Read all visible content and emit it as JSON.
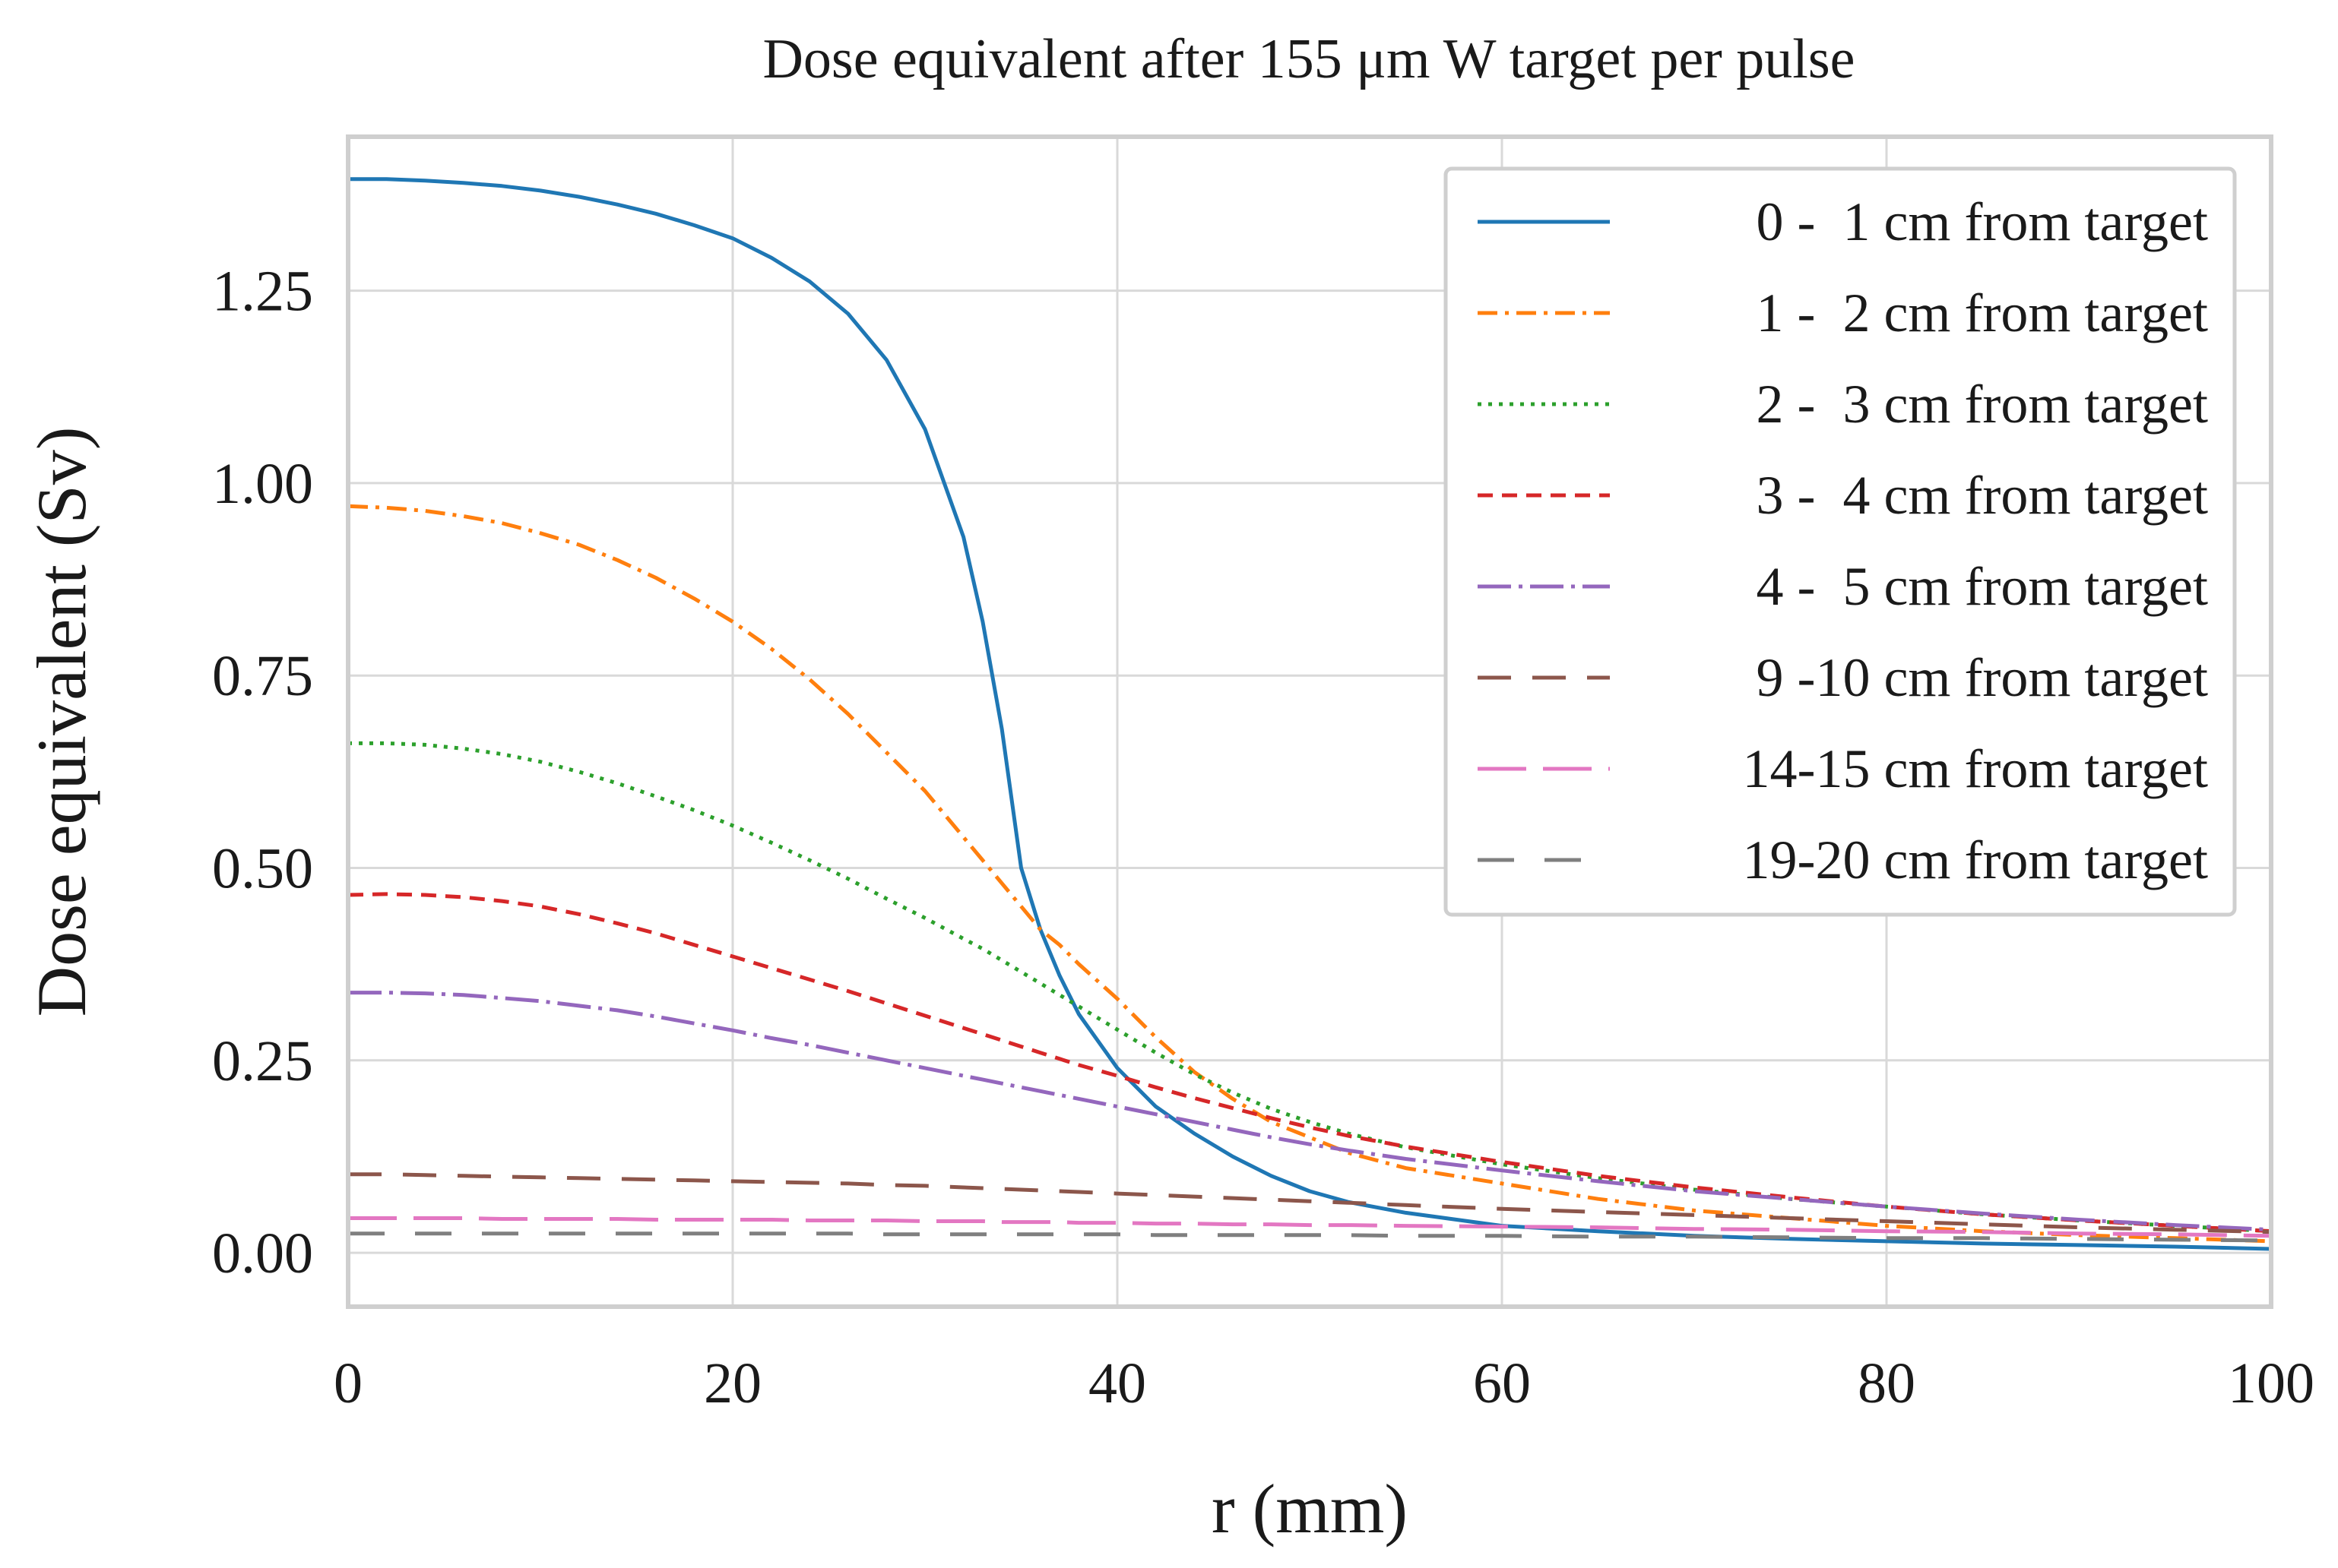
{
  "chart_data": {
    "type": "line",
    "title": "Dose equivalent after 155 μm W target per pulse",
    "xlabel": "r (mm)",
    "ylabel": "Dose equivalent (Sv)",
    "xlim": [
      0,
      100
    ],
    "ylim": [
      -0.07,
      1.45
    ],
    "xticks": [
      0,
      20,
      40,
      60,
      80,
      100
    ],
    "xtick_labels": [
      "0",
      "20",
      "40",
      "60",
      "80",
      "100"
    ],
    "yticks": [
      0,
      0.25,
      0.5,
      0.75,
      1.0,
      1.25
    ],
    "ytick_labels": [
      "0.00",
      "0.25",
      "0.50",
      "0.75",
      "1.00",
      "1.25"
    ],
    "grid": true,
    "legend_position": "top-right",
    "x": [
      0,
      2,
      4,
      6,
      8,
      10,
      12,
      14,
      16,
      18,
      20,
      22,
      24,
      26,
      28,
      30,
      32,
      33,
      34,
      35,
      36,
      37,
      38,
      40,
      42,
      44,
      46,
      48,
      50,
      52,
      55,
      60,
      65,
      70,
      75,
      80,
      85,
      90,
      95,
      100
    ],
    "series": [
      {
        "name": "0 -  1 cm from target",
        "color": "#1f77b4",
        "dash": "solid",
        "values": [
          1.395,
          1.395,
          1.393,
          1.39,
          1.386,
          1.38,
          1.372,
          1.362,
          1.35,
          1.335,
          1.318,
          1.293,
          1.262,
          1.22,
          1.16,
          1.07,
          0.93,
          0.82,
          0.68,
          0.5,
          0.42,
          0.36,
          0.31,
          0.24,
          0.19,
          0.155,
          0.125,
          0.1,
          0.08,
          0.066,
          0.052,
          0.035,
          0.028,
          0.022,
          0.018,
          0.015,
          0.012,
          0.01,
          0.008,
          0.005
        ]
      },
      {
        "name": "1 -  2 cm from target",
        "color": "#ff7f0e",
        "dash": "dashdot",
        "values": [
          0.97,
          0.968,
          0.964,
          0.957,
          0.948,
          0.935,
          0.92,
          0.9,
          0.877,
          0.85,
          0.82,
          0.785,
          0.745,
          0.7,
          0.65,
          0.6,
          0.54,
          0.51,
          0.48,
          0.45,
          0.42,
          0.4,
          0.375,
          0.33,
          0.28,
          0.235,
          0.2,
          0.17,
          0.15,
          0.13,
          0.11,
          0.09,
          0.07,
          0.055,
          0.045,
          0.035,
          0.028,
          0.023,
          0.019,
          0.015
        ]
      },
      {
        "name": "2 -  3 cm from target",
        "color": "#2ca02c",
        "dash": "dotted",
        "values": [
          0.662,
          0.662,
          0.66,
          0.655,
          0.648,
          0.638,
          0.625,
          0.61,
          0.593,
          0.575,
          0.555,
          0.533,
          0.51,
          0.486,
          0.46,
          0.435,
          0.408,
          0.395,
          0.38,
          0.365,
          0.35,
          0.335,
          0.32,
          0.29,
          0.26,
          0.232,
          0.208,
          0.187,
          0.17,
          0.155,
          0.137,
          0.115,
          0.097,
          0.082,
          0.07,
          0.06,
          0.05,
          0.042,
          0.035,
          0.028
        ]
      },
      {
        "name": "3 -  4 cm from target",
        "color": "#d62728",
        "dash": "dashed",
        "values": [
          0.465,
          0.466,
          0.465,
          0.462,
          0.457,
          0.45,
          0.44,
          0.428,
          0.415,
          0.4,
          0.385,
          0.37,
          0.355,
          0.34,
          0.324,
          0.308,
          0.292,
          0.284,
          0.276,
          0.268,
          0.26,
          0.252,
          0.244,
          0.23,
          0.215,
          0.201,
          0.188,
          0.175,
          0.163,
          0.152,
          0.138,
          0.118,
          0.1,
          0.085,
          0.072,
          0.06,
          0.05,
          0.042,
          0.035,
          0.028
        ]
      },
      {
        "name": "4 -  5 cm from target",
        "color": "#9467bd",
        "dash": "dashdotlong",
        "values": [
          0.338,
          0.338,
          0.337,
          0.335,
          0.331,
          0.327,
          0.321,
          0.315,
          0.307,
          0.298,
          0.289,
          0.279,
          0.27,
          0.26,
          0.25,
          0.24,
          0.23,
          0.225,
          0.22,
          0.215,
          0.21,
          0.205,
          0.2,
          0.19,
          0.18,
          0.17,
          0.16,
          0.15,
          0.141,
          0.133,
          0.122,
          0.107,
          0.093,
          0.08,
          0.07,
          0.06,
          0.051,
          0.043,
          0.036,
          0.03
        ]
      },
      {
        "name": "9 -10 cm from target",
        "color": "#8c564b",
        "dash": "longdash",
        "values": [
          0.102,
          0.102,
          0.101,
          0.1,
          0.099,
          0.098,
          0.097,
          0.096,
          0.095,
          0.094,
          0.093,
          0.092,
          0.091,
          0.09,
          0.088,
          0.087,
          0.085,
          0.084,
          0.083,
          0.082,
          0.081,
          0.08,
          0.079,
          0.077,
          0.075,
          0.073,
          0.071,
          0.069,
          0.067,
          0.065,
          0.062,
          0.057,
          0.053,
          0.049,
          0.045,
          0.041,
          0.037,
          0.033,
          0.03,
          0.027
        ]
      },
      {
        "name": "14-15 cm from target",
        "color": "#e377c2",
        "dash": "longdash2",
        "values": [
          0.045,
          0.045,
          0.045,
          0.045,
          0.044,
          0.044,
          0.044,
          0.044,
          0.043,
          0.043,
          0.043,
          0.043,
          0.042,
          0.042,
          0.042,
          0.041,
          0.041,
          0.041,
          0.04,
          0.04,
          0.04,
          0.04,
          0.039,
          0.039,
          0.038,
          0.038,
          0.037,
          0.037,
          0.036,
          0.036,
          0.035,
          0.034,
          0.033,
          0.031,
          0.03,
          0.028,
          0.027,
          0.025,
          0.024,
          0.022
        ]
      },
      {
        "name": "19-20 cm from target",
        "color": "#7f7f7f",
        "dash": "longdash3",
        "values": [
          0.025,
          0.025,
          0.025,
          0.025,
          0.025,
          0.025,
          0.025,
          0.025,
          0.025,
          0.025,
          0.025,
          0.025,
          0.025,
          0.025,
          0.024,
          0.024,
          0.024,
          0.024,
          0.024,
          0.024,
          0.024,
          0.024,
          0.024,
          0.024,
          0.023,
          0.023,
          0.023,
          0.023,
          0.023,
          0.023,
          0.022,
          0.022,
          0.021,
          0.021,
          0.02,
          0.019,
          0.019,
          0.018,
          0.017,
          0.016
        ]
      }
    ]
  }
}
